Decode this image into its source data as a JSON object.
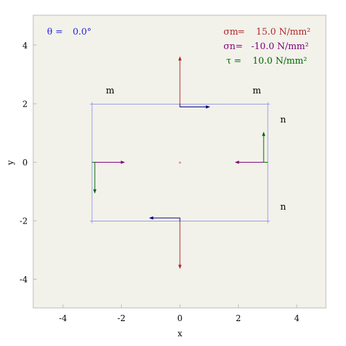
{
  "colors": {
    "background": "#f2f2ea",
    "frame": "#bbbbbb",
    "rectangle": "#9999ee",
    "sigma_m": "#b0232a",
    "sigma_n": "#800080",
    "tau": "#006600",
    "shear_arrow": "#00007f",
    "theta": "#2222dd"
  },
  "axes": {
    "xlabel": "x",
    "ylabel": "y",
    "xlim": [
      -5,
      5
    ],
    "ylim": [
      -5,
      5
    ],
    "xticks": [
      "-4",
      "-2",
      "0",
      "2",
      "4"
    ],
    "yticks": [
      "-4",
      "-2",
      "0",
      "2",
      "4"
    ]
  },
  "annotations": {
    "theta": {
      "symbol": "θ",
      "eq": "=",
      "value": "0.0°"
    },
    "sigma_m": {
      "symbol": "σm",
      "eq": "=",
      "value": "15.0 N/mm²"
    },
    "sigma_n": {
      "symbol": "σn",
      "eq": "=",
      "value": "-10.0 N/mm²"
    },
    "tau": {
      "symbol": "τ",
      "eq": "=",
      "value": "10.0 N/mm²"
    }
  },
  "plane_labels": {
    "m_left": "m",
    "m_right": "m",
    "n_top": "n",
    "n_bottom": "n"
  },
  "element": {
    "x_range": [
      -3,
      3
    ],
    "y_range": [
      -2,
      2
    ]
  },
  "stress_values": {
    "sigma_m": 15.0,
    "sigma_n": -10.0,
    "tau": 10.0,
    "theta_deg": 0.0
  }
}
